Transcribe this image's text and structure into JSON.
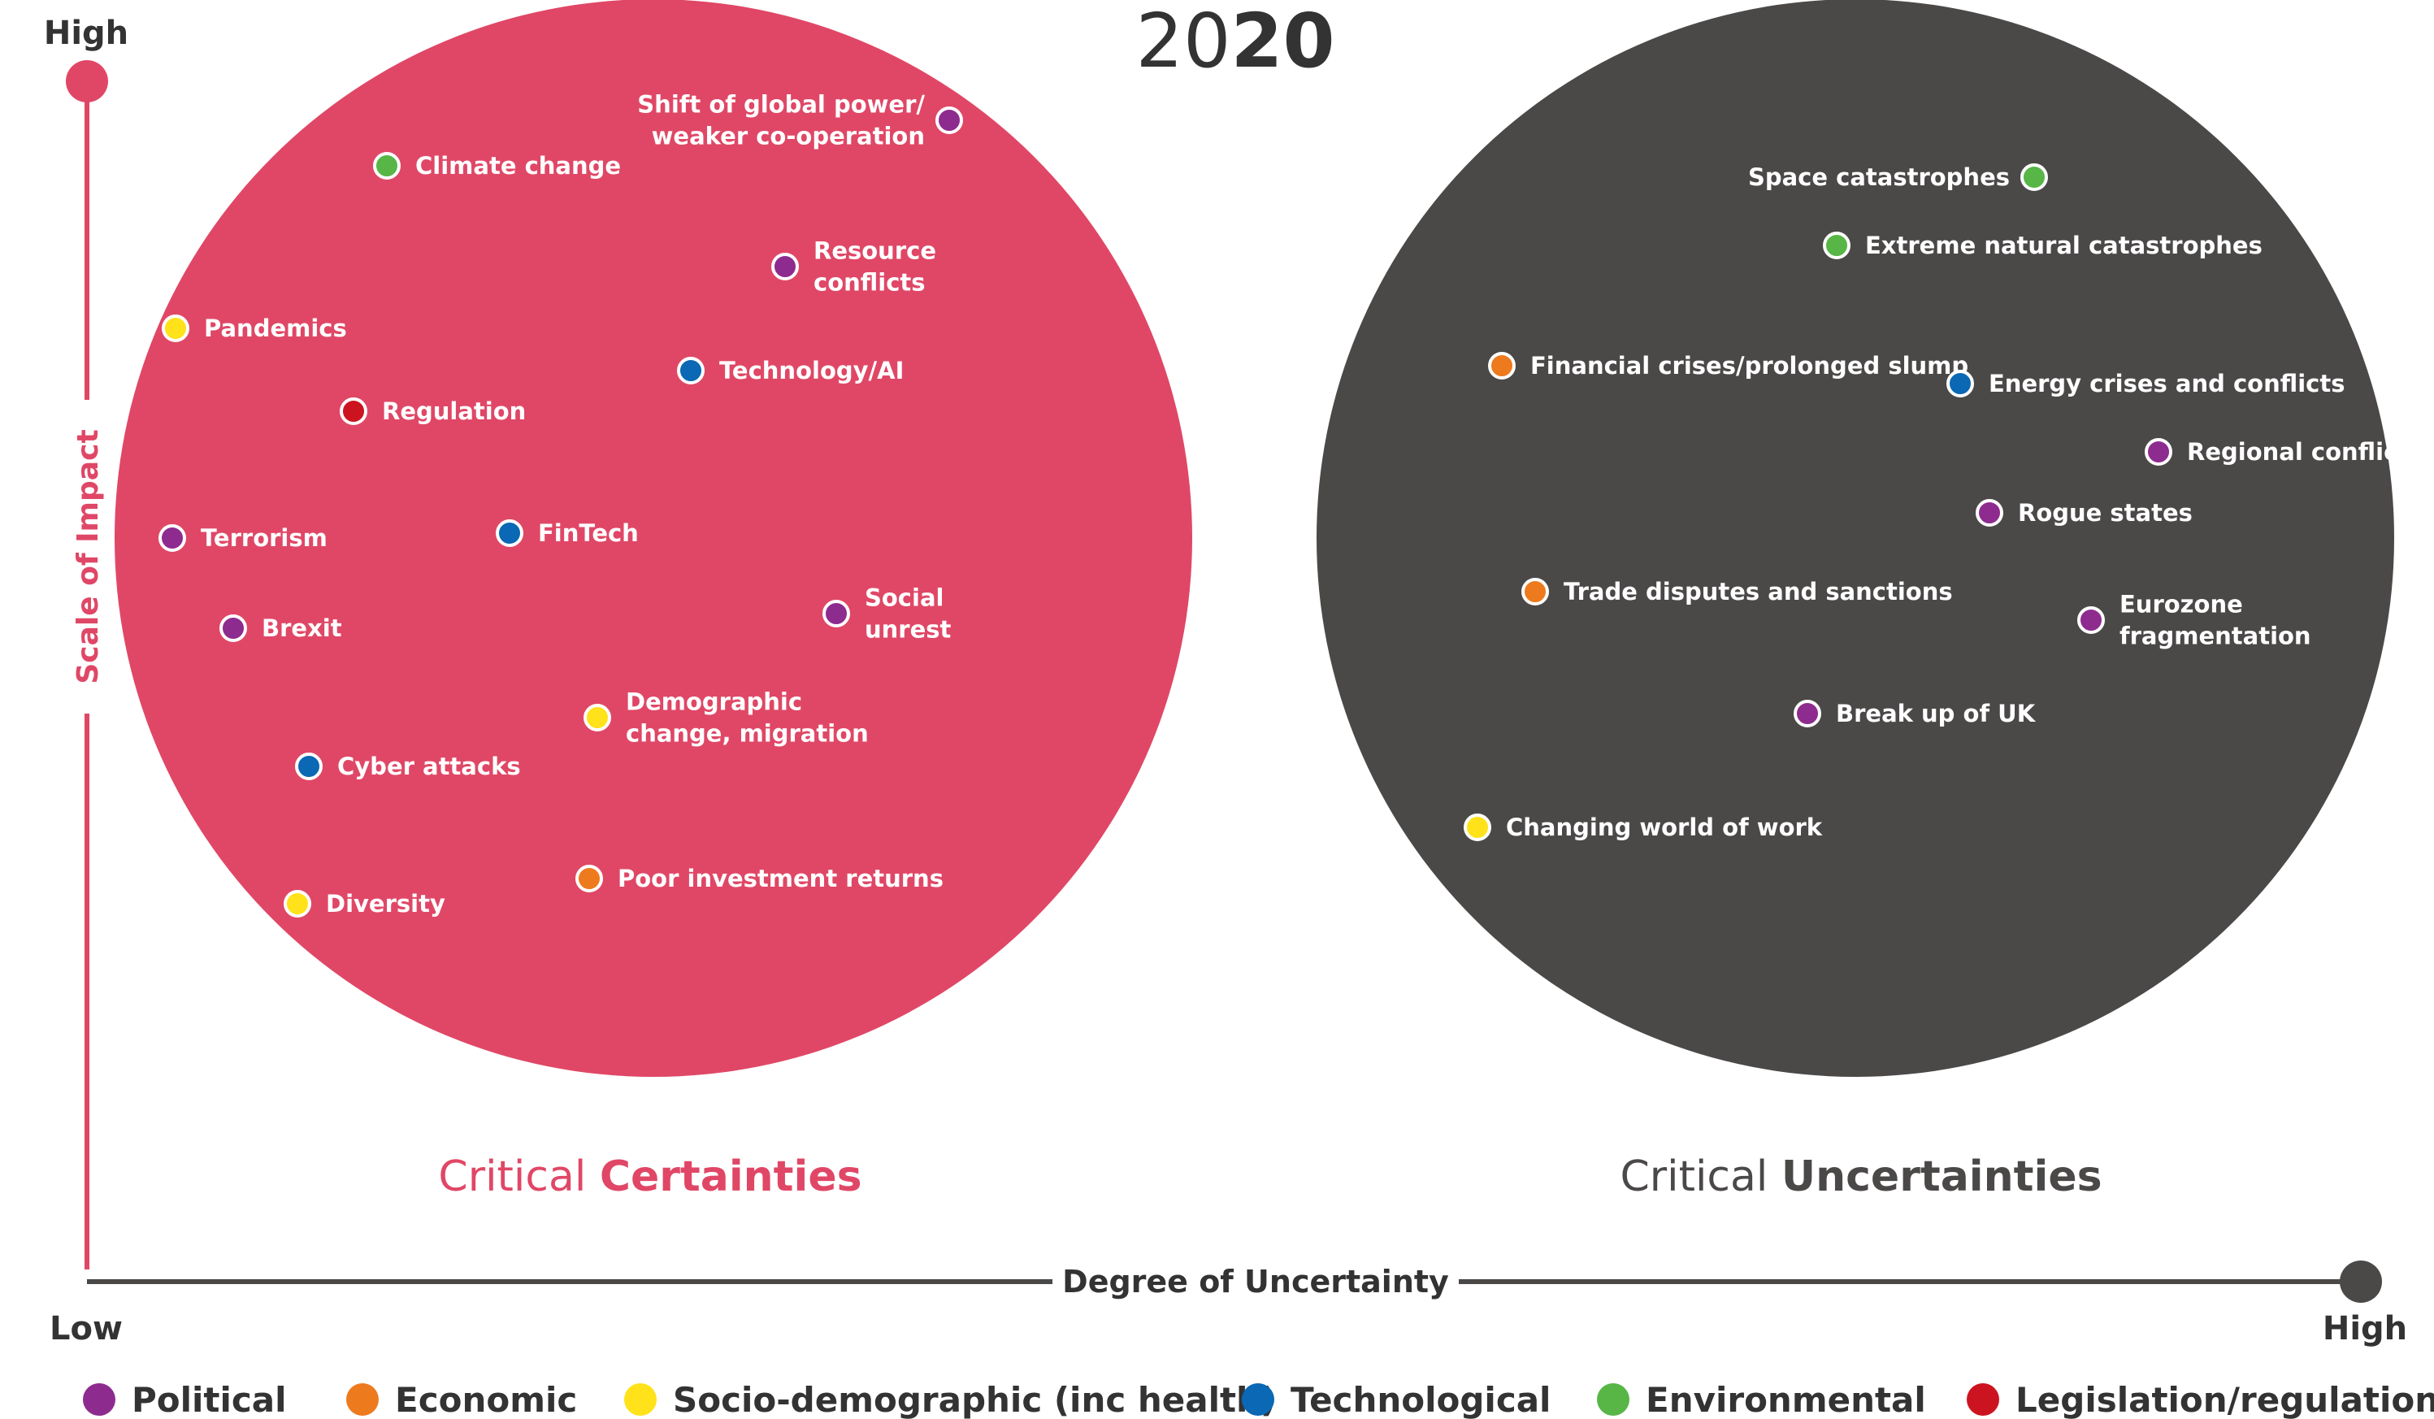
{
  "title": {
    "light": "20",
    "bold": "20"
  },
  "y_axis": {
    "label": "Scale of Impact",
    "high": "High"
  },
  "x_axis": {
    "label": "Degree of Uncertainty",
    "low": "Low",
    "high": "High"
  },
  "colors": {
    "Political": "#8e2b8f",
    "Economic": "#ee7a1e",
    "Socio-demographic": "#ffe21a",
    "Technological": "#0a68b4",
    "Environmental": "#57b646",
    "Legislation": "#cc1421",
    "certainties_fill": "#e04766",
    "uncertainties_fill": "#4b4848"
  },
  "groups": [
    {
      "caption_light": "Critical ",
      "caption_bold": "Certainties",
      "items": [
        {
          "lines": [
            "Shift of global power/",
            "weaker co-operation"
          ],
          "category": "Political"
        },
        {
          "lines": [
            "Climate change"
          ],
          "category": "Environmental"
        },
        {
          "lines": [
            "Resource",
            "conflicts"
          ],
          "category": "Political"
        },
        {
          "lines": [
            "Pandemics"
          ],
          "category": "Socio-demographic"
        },
        {
          "lines": [
            "Technology/AI"
          ],
          "category": "Technological"
        },
        {
          "lines": [
            "Regulation"
          ],
          "category": "Legislation"
        },
        {
          "lines": [
            "Terrorism"
          ],
          "category": "Political"
        },
        {
          "lines": [
            "FinTech"
          ],
          "category": "Technological"
        },
        {
          "lines": [
            "Social",
            "unrest"
          ],
          "category": "Political"
        },
        {
          "lines": [
            "Brexit"
          ],
          "category": "Political"
        },
        {
          "lines": [
            "Demographic",
            "change, migration"
          ],
          "category": "Socio-demographic"
        },
        {
          "lines": [
            "Cyber attacks"
          ],
          "category": "Technological"
        },
        {
          "lines": [
            "Poor investment returns"
          ],
          "category": "Economic"
        },
        {
          "lines": [
            "Diversity"
          ],
          "category": "Socio-demographic"
        }
      ]
    },
    {
      "caption_light": "Critical ",
      "caption_bold": "Uncertainties",
      "items": [
        {
          "lines": [
            "Space catastrophes"
          ],
          "category": "Environmental"
        },
        {
          "lines": [
            "Extreme natural catastrophes"
          ],
          "category": "Environmental"
        },
        {
          "lines": [
            "Financial crises/prolonged slump"
          ],
          "category": "Economic"
        },
        {
          "lines": [
            "Energy crises and conflicts"
          ],
          "category": "Technological"
        },
        {
          "lines": [
            "Regional conflicts"
          ],
          "category": "Political"
        },
        {
          "lines": [
            "Rogue states"
          ],
          "category": "Political"
        },
        {
          "lines": [
            "Trade disputes and sanctions"
          ],
          "category": "Economic"
        },
        {
          "lines": [
            "Eurozone",
            "fragmentation"
          ],
          "category": "Political"
        },
        {
          "lines": [
            "Break up of UK"
          ],
          "category": "Political"
        },
        {
          "lines": [
            "Changing world of work"
          ],
          "category": "Socio-demographic"
        }
      ]
    }
  ],
  "legend": [
    {
      "label": "Political",
      "category": "Political"
    },
    {
      "label": "Economic",
      "category": "Economic"
    },
    {
      "label": "Socio-demographic (inc health)",
      "category": "Socio-demographic"
    },
    {
      "label": "Technological",
      "category": "Technological"
    },
    {
      "label": "Environmental",
      "category": "Environmental"
    },
    {
      "label": "Legislation/regulation",
      "category": "Legislation"
    }
  ]
}
